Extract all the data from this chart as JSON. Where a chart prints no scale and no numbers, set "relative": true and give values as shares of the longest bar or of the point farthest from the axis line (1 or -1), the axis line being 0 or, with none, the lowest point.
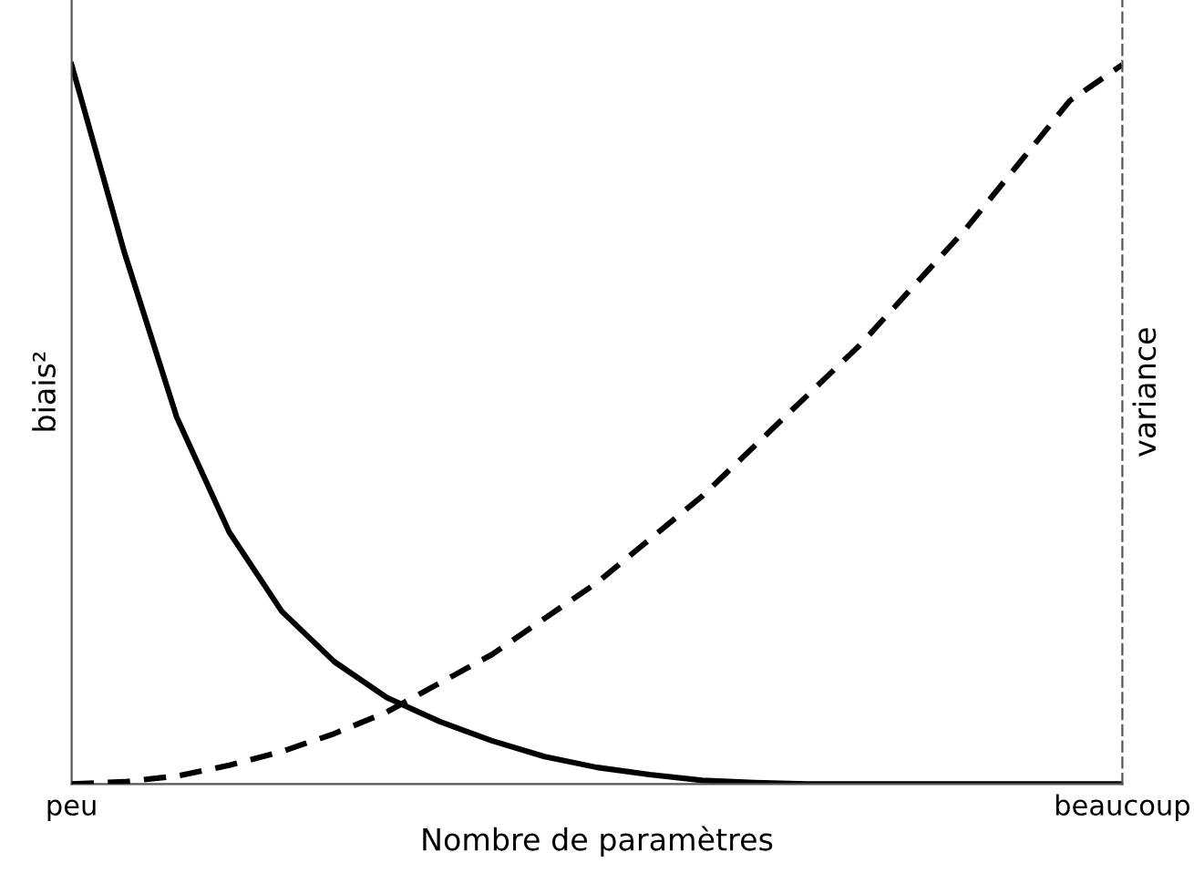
{
  "chart_data": {
    "type": "line",
    "relative": true,
    "xlabel": "Nombre de paramètres",
    "ylabel": "biais²",
    "y2label": "variance",
    "categories": [
      "peu",
      null,
      null,
      null,
      null,
      null,
      null,
      null,
      null,
      null,
      null,
      null,
      null,
      null,
      null,
      null,
      null,
      null,
      null,
      null,
      "beaucoup"
    ],
    "series": [
      {
        "color": "#000000",
        "line_style": "solid",
        "values": [
          1.0,
          0.74,
          0.51,
          0.35,
          0.24,
          0.17,
          0.12,
          0.087,
          0.06,
          0.038,
          0.023,
          0.013,
          0.005,
          0.002,
          0,
          0,
          0,
          0,
          0,
          0,
          0
        ]
      },
      {
        "color": "#000000",
        "line_style": "dashed",
        "axis": "y2",
        "values": [
          0,
          0.003,
          0.011,
          0.026,
          0.045,
          0.07,
          0.1,
          0.14,
          0.18,
          0.23,
          0.28,
          0.34,
          0.4,
          0.47,
          0.54,
          0.61,
          0.69,
          0.77,
          0.86,
          0.95,
          1.0
        ]
      }
    ],
    "grid": false,
    "legend": false,
    "marker": "none",
    "tick_labels": "x"
  }
}
